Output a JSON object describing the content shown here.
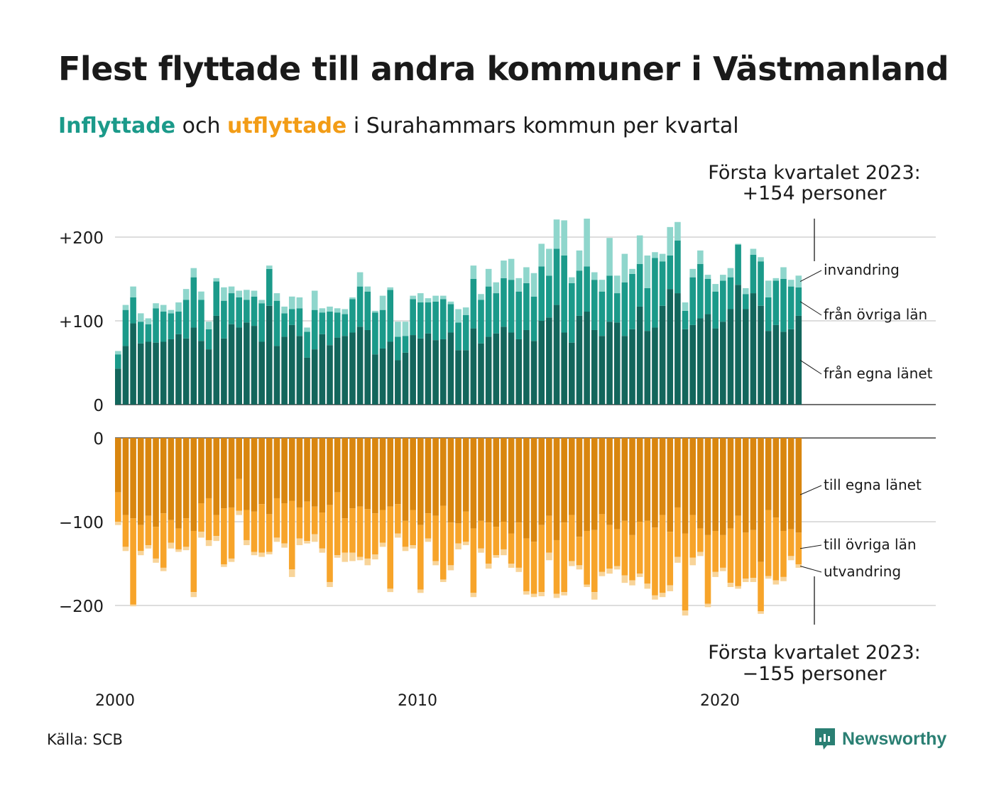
{
  "title": "Flest flyttade till andra kommuner i Västmanland",
  "subtitle": {
    "in_word": "Inflyttade",
    "mid_word": "och",
    "out_word": "utflyttade",
    "rest": "i Surahammars kommun per kvartal"
  },
  "annotation_top": {
    "line1": "Första kvartalet 2023:",
    "line2": "+154 personer"
  },
  "annotation_bottom": {
    "line1": "Första kvartalet 2023:",
    "line2": "−155 personer"
  },
  "source": "Källa: SCB",
  "brand": "Newsworthy",
  "colors": {
    "in_egna": "#13665c",
    "in_ovriga": "#1b9a8a",
    "in_invandring": "#8fd6cc",
    "out_egna": "#d9860f",
    "out_ovriga": "#f7a42a",
    "out_utvandring": "#f8d499",
    "grid": "#dddddd",
    "text": "#1a1a1a"
  },
  "chart_data": [
    {
      "type": "bar",
      "stacked": true,
      "panel": "inflyttade",
      "x_start": "2000 Q1",
      "x_end": "2023 Q1",
      "x_tick_labels": [
        "2000",
        "2010",
        "2020"
      ],
      "y_tick_labels": [
        "+200",
        "+100",
        "0"
      ],
      "ylim": [
        0,
        225
      ],
      "series": [
        {
          "name": "från egna länet",
          "values": [
            43,
            70,
            97,
            73,
            75,
            74,
            75,
            78,
            84,
            79,
            92,
            76,
            66,
            106,
            79,
            96,
            92,
            98,
            94,
            75,
            118,
            70,
            81,
            95,
            82,
            56,
            66,
            84,
            71,
            80,
            82,
            86,
            93,
            89,
            60,
            67,
            75,
            53,
            62,
            83,
            79,
            85,
            77,
            78,
            86,
            65,
            65,
            91,
            73,
            81,
            85,
            93,
            86,
            78,
            89,
            76,
            100,
            104,
            119,
            86,
            74,
            106,
            111,
            89,
            82,
            99,
            98,
            82,
            90,
            117,
            88,
            92,
            118,
            138,
            133,
            90,
            95,
            103,
            108,
            91,
            99,
            114,
            143,
            114,
            133,
            118,
            88,
            95,
            87,
            90,
            106
          ]
        },
        {
          "name": "från övriga län",
          "values": [
            17,
            43,
            31,
            26,
            21,
            41,
            36,
            31,
            27,
            46,
            60,
            49,
            24,
            41,
            45,
            37,
            36,
            27,
            35,
            46,
            44,
            54,
            28,
            19,
            33,
            31,
            47,
            26,
            40,
            30,
            26,
            40,
            48,
            46,
            50,
            46,
            62,
            28,
            20,
            43,
            43,
            37,
            46,
            48,
            34,
            33,
            42,
            59,
            52,
            60,
            48,
            58,
            63,
            57,
            56,
            53,
            65,
            50,
            67,
            92,
            71,
            54,
            54,
            60,
            53,
            55,
            35,
            64,
            66,
            51,
            51,
            83,
            53,
            40,
            63,
            22,
            57,
            65,
            42,
            44,
            49,
            38,
            48,
            18,
            46,
            53,
            40,
            53,
            63,
            51,
            34
          ]
        },
        {
          "name": "invandring",
          "values": [
            4,
            6,
            13,
            10,
            7,
            6,
            8,
            4,
            11,
            13,
            11,
            10,
            9,
            4,
            16,
            8,
            8,
            12,
            7,
            4,
            4,
            9,
            8,
            15,
            13,
            5,
            23,
            5,
            6,
            5,
            6,
            2,
            17,
            6,
            2,
            17,
            3,
            18,
            17,
            4,
            11,
            5,
            7,
            4,
            3,
            16,
            9,
            16,
            7,
            21,
            13,
            21,
            25,
            16,
            19,
            28,
            27,
            32,
            35,
            42,
            7,
            24,
            57,
            9,
            14,
            45,
            21,
            34,
            6,
            34,
            39,
            7,
            9,
            34,
            22,
            10,
            10,
            16,
            5,
            9,
            7,
            11,
            1,
            7,
            7,
            5,
            20,
            3,
            14,
            8,
            14
          ]
        }
      ]
    },
    {
      "type": "bar",
      "stacked": true,
      "panel": "utflyttade",
      "x_start": "2000 Q1",
      "x_end": "2023 Q1",
      "x_tick_labels": [
        "2000",
        "2010",
        "2020"
      ],
      "y_tick_labels": [
        "0",
        "−100",
        "−200"
      ],
      "ylim": [
        -225,
        0
      ],
      "series": [
        {
          "name": "till egna länet",
          "values": [
            -65,
            -92,
            -96,
            -104,
            -93,
            -106,
            -90,
            -98,
            -108,
            -96,
            -111,
            -78,
            -72,
            -92,
            -84,
            -83,
            -49,
            -86,
            -88,
            -79,
            -91,
            -72,
            -78,
            -75,
            -83,
            -76,
            -82,
            -89,
            -80,
            -65,
            -96,
            -84,
            -82,
            -85,
            -90,
            -86,
            -82,
            -79,
            -99,
            -86,
            -104,
            -90,
            -93,
            -81,
            -101,
            -102,
            -88,
            -108,
            -99,
            -101,
            -106,
            -100,
            -114,
            -101,
            -120,
            -124,
            -104,
            -93,
            -122,
            -101,
            -92,
            -118,
            -111,
            -110,
            -91,
            -104,
            -109,
            -99,
            -116,
            -100,
            -99,
            -107,
            -92,
            -112,
            -83,
            -114,
            -92,
            -108,
            -116,
            -111,
            -116,
            -108,
            -93,
            -113,
            -110,
            -148,
            -86,
            -95,
            -111,
            -109,
            -113
          ]
        },
        {
          "name": "till övriga län",
          "values": [
            -35,
            -38,
            -103,
            -31,
            -35,
            -38,
            -65,
            -27,
            -25,
            -34,
            -73,
            -34,
            -50,
            -25,
            -67,
            -61,
            -38,
            -36,
            -48,
            -58,
            -45,
            -47,
            -48,
            -82,
            -37,
            -47,
            -33,
            -43,
            -92,
            -75,
            -41,
            -53,
            -60,
            -59,
            -49,
            -39,
            -98,
            -35,
            -31,
            -42,
            -77,
            -30,
            -54,
            -88,
            -51,
            -24,
            -36,
            -77,
            -33,
            -49,
            -34,
            -33,
            -36,
            -54,
            -63,
            -62,
            -80,
            -44,
            -64,
            -83,
            -55,
            -34,
            -64,
            -74,
            -69,
            -52,
            -44,
            -65,
            -54,
            -62,
            -75,
            -81,
            -93,
            -64,
            -59,
            -92,
            -51,
            -28,
            -82,
            -49,
            -39,
            -65,
            -84,
            -55,
            -57,
            -59,
            -79,
            -75,
            -55,
            -32,
            -38
          ]
        },
        {
          "name": "utvandring",
          "values": [
            -4,
            -5,
            -2,
            -5,
            -4,
            -5,
            -4,
            -7,
            -3,
            -4,
            -6,
            -7,
            -7,
            -6,
            -3,
            -4,
            -5,
            -6,
            -4,
            -5,
            -3,
            -5,
            -5,
            -9,
            -8,
            -3,
            -9,
            -5,
            -6,
            -3,
            -11,
            -10,
            -4,
            -8,
            -6,
            -5,
            -4,
            -5,
            -5,
            -4,
            -4,
            -4,
            -5,
            -3,
            -6,
            -7,
            -4,
            -5,
            -5,
            -6,
            -3,
            -7,
            -5,
            -5,
            -4,
            -4,
            -5,
            -9,
            -5,
            -4,
            -6,
            -5,
            -3,
            -9,
            -5,
            -6,
            -4,
            -9,
            -6,
            -4,
            -6,
            -5,
            -5,
            -7,
            -7,
            -6,
            -9,
            -5,
            -4,
            -6,
            -4,
            -5,
            -3,
            -4,
            -5,
            -3,
            -3,
            -5,
            -5,
            -5,
            -4
          ]
        }
      ]
    }
  ]
}
